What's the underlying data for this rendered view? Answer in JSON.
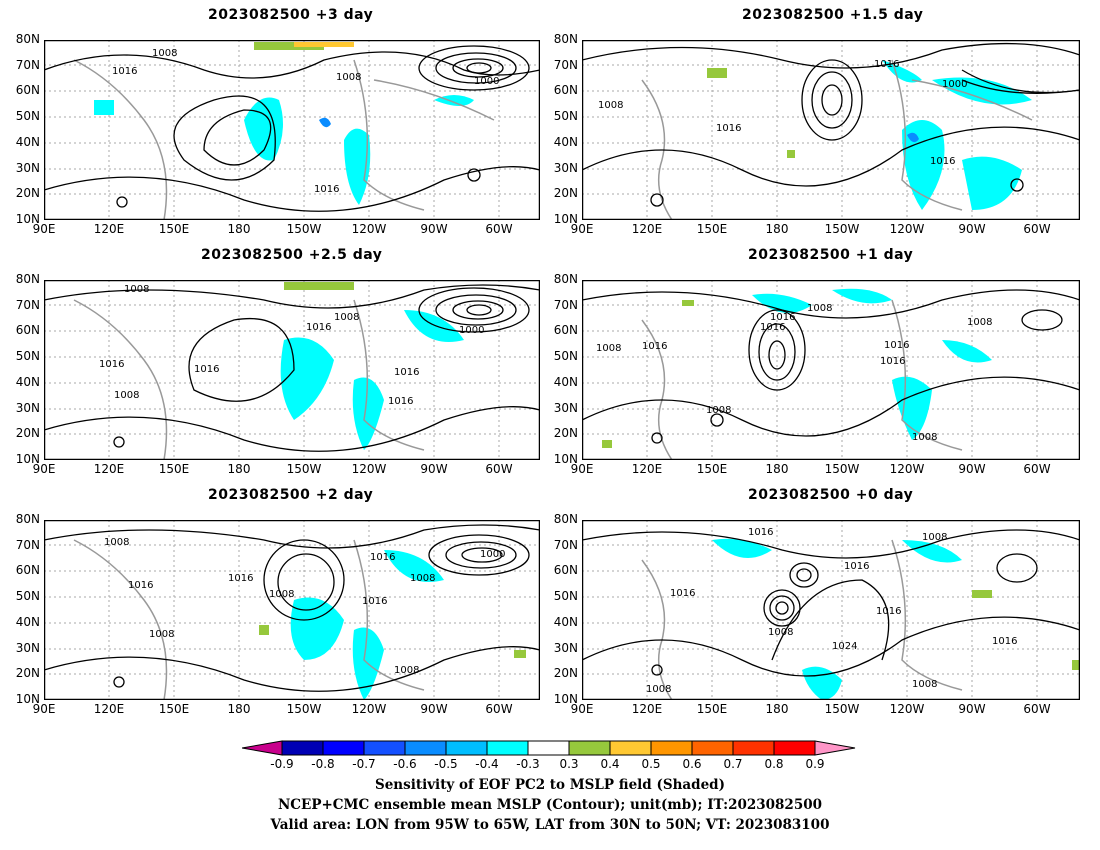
{
  "panels": [
    {
      "title": "2023082500  +3 day"
    },
    {
      "title": "2023082500  +1.5 day"
    },
    {
      "title": "2023082500  +2.5 day"
    },
    {
      "title": "2023082500  +1 day"
    },
    {
      "title": "2023082500  +2 day"
    },
    {
      "title": "2023082500  +0 day"
    }
  ],
  "axes": {
    "lat_labels": [
      "80N",
      "70N",
      "60N",
      "50N",
      "40N",
      "30N",
      "20N",
      "10N"
    ],
    "lon_labels": [
      "90E",
      "120E",
      "150E",
      "180",
      "150W",
      "120W",
      "90W",
      "60W"
    ]
  },
  "colorbar": {
    "ticks": [
      "-0.9",
      "-0.8",
      "-0.7",
      "-0.6",
      "-0.5",
      "-0.4",
      "-0.3",
      "0.3",
      "0.4",
      "0.5",
      "0.6",
      "0.7",
      "0.8",
      "0.9"
    ],
    "colors": [
      "#c8008c",
      "#0000b4",
      "#0000ff",
      "#1450ff",
      "#0a8cff",
      "#00beff",
      "#00ffff",
      "#ffffff",
      "#96c83c",
      "#ffc832",
      "#ff9600",
      "#ff6400",
      "#ff3200",
      "#ff0000",
      "#ff96c8"
    ]
  },
  "contour_labels": [
    "1008",
    "1016",
    "1000",
    "1024"
  ],
  "caption": {
    "line1": "Sensitivity of EOF PC2 to MSLP field (Shaded)",
    "line2": "NCEP+CMC ensemble mean MSLP (Contour); unit(mb); IT:2023082500",
    "line3": "Valid area: LON from 95W to 65W, LAT from 30N to 50N; VT: 2023083100"
  }
}
